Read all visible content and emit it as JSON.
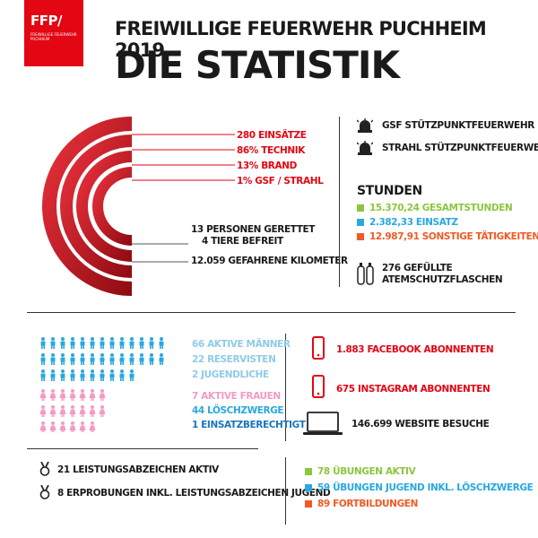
{
  "logo": {
    "abbr": "FFP/",
    "org": "FREIWILLIGE FEUERWEHR PUCHHEIM"
  },
  "header": {
    "title": "FREIWILLIGE FEUERWEHR PUCHHEIM 2019",
    "subtitle": "DIE STATISTIK"
  },
  "operations": {
    "einsaetze": "280 EINSÄTZE",
    "technik": "86% TECHNIK",
    "brand": "13% BRAND",
    "gsf": "1% GSF / STRAHL",
    "gerettet": "13 PERSONEN GERETTET",
    "tiere": "4 TIERE BEFREIT",
    "kilometer": "12.059 GEFAHRENE KILOMETER"
  },
  "units": {
    "gsf": "GSF STÜTZPUNKTFEUERWEHR",
    "strahl": "STRAHL STÜTZPUNKTFEUERWEHR"
  },
  "hours": {
    "heading": "STUNDEN",
    "total": "15.370,24 GESAMTSTUNDEN",
    "einsatz": "2.382,33 EINSATZ",
    "sonstige": "12.987,91 SONSTIGE TÄTIGKEITEN"
  },
  "bottles": {
    "line1": "276 GEFÜLLTE",
    "line2": "ATEMSCHUTZFLASCHEN"
  },
  "members": {
    "aktive_maenner": "66 AKTIVE MÄNNER",
    "reservisten": "22 RESERVISTEN",
    "jugendliche": "2 JUGENDLICHE",
    "aktive_frauen": "7 AKTIVE FRAUEN",
    "loeschzwerge": "44 LÖSCHZWERGE",
    "einsatzberechtigt": "1 EINSATZBERECHTIGT"
  },
  "social": {
    "facebook": "1.883 FACEBOOK ABONNENTEN",
    "instagram": "675 INSTAGRAM ABONNENTEN",
    "website": "146.699 WEBSITE BESUCHE"
  },
  "badges": {
    "aktiv": "21 LEISTUNGSABZEICHEN AKTIV",
    "jugend": "8 ERPROBUNGEN INKL. LEISTUNGSABZEICHEN JUGEND"
  },
  "training": {
    "uebungen_aktiv": "78 ÜBUNGEN AKTIV",
    "uebungen_jugend": "59 ÜBUNGEN JUGEND INKL. LÖSCHZWERGE",
    "fortbildungen": "89 FORTBILDUNGEN"
  },
  "colors": {
    "red": "#e30613",
    "green": "#8cc63f",
    "blue": "#29a8e0",
    "orange": "#f15a24",
    "pink": "#f39bc2",
    "gray": "#b3b3b3"
  }
}
